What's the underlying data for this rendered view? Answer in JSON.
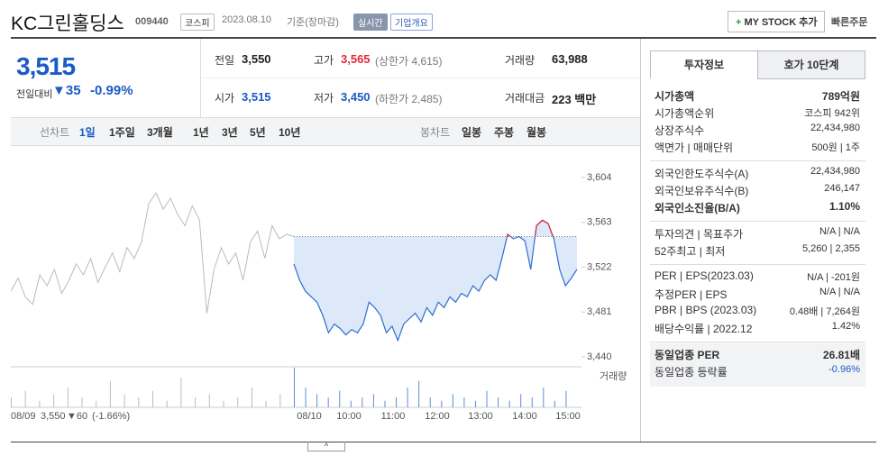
{
  "header": {
    "name": "KC그린홀딩스",
    "code": "009440",
    "market": "코스피",
    "date": "2023.08.10",
    "basis": "기준(장마감)",
    "realtime": "실시간",
    "overview": "기업개요",
    "mystock": "MY STOCK 추가",
    "quick": "빠른주문"
  },
  "quote": {
    "price": "3,515",
    "change_label": "전일대비",
    "change": "▼35",
    "rate": "-0.99%"
  },
  "summary": [
    [
      {
        "label": "전일",
        "value": "3,550"
      },
      {
        "label": "고가",
        "value": "3,565",
        "extra": "(상한가 4,615)"
      },
      {
        "label": "거래량",
        "value": "63,988"
      }
    ],
    [
      {
        "label": "시가",
        "value": "3,515"
      },
      {
        "label": "저가",
        "value": "3,450",
        "extra": "(하한가 2,485)"
      },
      {
        "label": "거래대금",
        "value": "223 백만"
      }
    ]
  ],
  "tabs": {
    "line_label": "선차트",
    "line": [
      "1일",
      "1주일",
      "3개월",
      "1년",
      "3년",
      "5년",
      "10년"
    ],
    "candle_label": "봉차트",
    "candle": [
      "일봉",
      "주봉",
      "월봉"
    ]
  },
  "chart_data": {
    "type": "line",
    "ylim": [
      3440,
      3604
    ],
    "yticks": [
      {
        "value": 3604,
        "label": "3,604"
      },
      {
        "value": 3563,
        "label": "3,563"
      },
      {
        "value": 3522,
        "label": "3,522"
      },
      {
        "value": 3481,
        "label": "3,481"
      },
      {
        "value": 3440,
        "label": "3,440"
      }
    ],
    "reference": 3550,
    "color": "#2d6fd0",
    "up_color": "#e0283a",
    "prev_color": "#bbbbbb",
    "xticks": [
      "08/10",
      "10:00",
      "11:00",
      "12:00",
      "13:00",
      "14:00",
      "15:00"
    ],
    "prev_day": {
      "label": "08/09",
      "close": "3,550",
      "change": "▼60",
      "rate": "(-1.66%)",
      "values": [
        3500,
        3512,
        3495,
        3488,
        3515,
        3505,
        3520,
        3498,
        3510,
        3525,
        3515,
        3530,
        3508,
        3522,
        3535,
        3518,
        3540,
        3530,
        3545,
        3580,
        3590,
        3575,
        3585,
        3570,
        3560,
        3578,
        3565,
        3480,
        3520,
        3540,
        3525,
        3535,
        3510,
        3545,
        3555,
        3530,
        3560,
        3548,
        3552,
        3550
      ]
    },
    "values": [
      3525,
      3510,
      3500,
      3495,
      3490,
      3478,
      3462,
      3470,
      3466,
      3460,
      3465,
      3462,
      3470,
      3490,
      3485,
      3478,
      3462,
      3468,
      3455,
      3470,
      3475,
      3480,
      3472,
      3485,
      3478,
      3490,
      3485,
      3495,
      3490,
      3498,
      3495,
      3505,
      3500,
      3510,
      3515,
      3510,
      3530,
      3552,
      3548,
      3550,
      3546,
      3520,
      3560,
      3565,
      3562,
      3548,
      3520,
      3505,
      3512,
      3520
    ],
    "volume": {
      "label": "거래량",
      "prev": [
        3,
        5,
        2,
        4,
        6,
        3,
        2,
        8,
        4,
        3,
        5,
        2,
        9,
        3,
        4,
        2,
        3,
        6,
        2,
        4
      ],
      "values": [
        12,
        6,
        4,
        3,
        5,
        2,
        3,
        4,
        2,
        3,
        6,
        8,
        3,
        2,
        4,
        3,
        2,
        5,
        3,
        2,
        4,
        3,
        6,
        2,
        5
      ]
    }
  },
  "info": {
    "tabs": [
      "투자정보",
      "호가 10단계"
    ],
    "sections": [
      [
        {
          "label": "시가총액",
          "value": "789억원",
          "bold": true
        },
        {
          "label": "시가총액순위",
          "value": "코스피 942위"
        },
        {
          "label": "상장주식수",
          "value": "22,434,980"
        },
        {
          "label": "액면가 | 매매단위",
          "value": "500원 | 1주"
        }
      ],
      [
        {
          "label": "외국인한도주식수(A)",
          "value": "22,434,980"
        },
        {
          "label": "외국인보유주식수(B)",
          "value": "246,147"
        },
        {
          "label": "외국인소진율(B/A)",
          "value": "1.10%",
          "bold": true
        }
      ],
      [
        {
          "label": "투자의견 | 목표주가",
          "value": "N/A | N/A"
        },
        {
          "label": "52주최고 | 최저",
          "value": "5,260 | 2,355"
        }
      ],
      [
        {
          "label": "PER | EPS(2023.03)",
          "value": "N/A | -201원"
        },
        {
          "label": "추정PER | EPS",
          "value": "N/A | N/A"
        },
        {
          "label": "PBR | BPS (2023.03)",
          "value": "0.48배 | 7,264원"
        },
        {
          "label": "배당수익률 | 2022.12",
          "value": "1.42%"
        }
      ],
      [
        {
          "label": "동일업종 PER",
          "value": "26.81배",
          "bold": true
        },
        {
          "label": "동일업종 등락률",
          "value": "-0.96%",
          "blue": true
        }
      ]
    ]
  }
}
